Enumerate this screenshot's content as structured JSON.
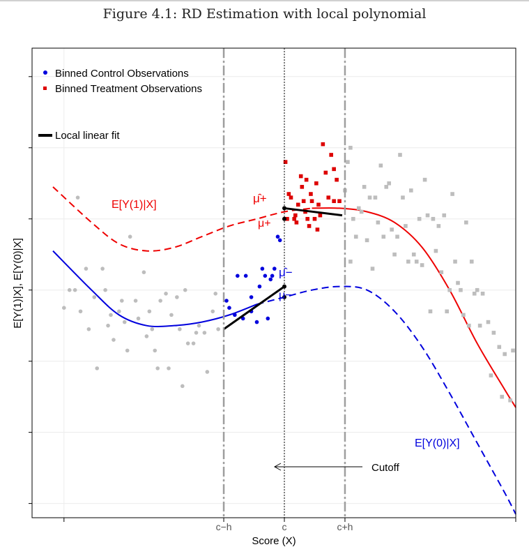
{
  "figure_title": "Figure 4.1: RD Estimation with local polynomial",
  "chart_data": {
    "type": "scatter",
    "title": "Figure 4.1: RD Estimation with local polynomial",
    "xlabel": "Score (X)",
    "ylabel": "E[Y(1)|X], E[Y(0)|X]",
    "xlim": [
      -4.2,
      4.2
    ],
    "ylim": [
      -3.2,
      3.4
    ],
    "x_tick_labels": [
      {
        "x": -4.0,
        "label": ""
      },
      {
        "x": -1.1,
        "label": "c−h"
      },
      {
        "x": 0.0,
        "label": "c"
      },
      {
        "x": 1.1,
        "label": "c+h"
      },
      {
        "x": 4.2,
        "label": ""
      }
    ],
    "grid": true,
    "legend": {
      "position": "top-left",
      "entries": [
        {
          "label": "Binned Control Observations",
          "marker": "circle",
          "color": "#0000dd"
        },
        {
          "label": "Binned Treatment Observations",
          "marker": "square",
          "color": "#dd0000"
        },
        {
          "label": "Local linear fit",
          "marker": "line",
          "color": "#000000"
        }
      ]
    },
    "annotations": {
      "ey1": "E[Y(1)|X]",
      "ey0": "E[Y(0)|X]",
      "cutoff": "Cutoff",
      "mu_plus_hat": "μ̂+",
      "mu_plus": "μ+",
      "mu_minus_hat": "μ̂−",
      "mu_minus": "μ−"
    },
    "colors": {
      "treatment": "#ee0000",
      "control": "#0000dd",
      "grey": "#bdbdbd",
      "fit": "#000000"
    },
    "series": [
      {
        "name": "E[Y(1)|X]",
        "kind": "curve",
        "color": "#ee0000",
        "x": [
          -4.2,
          -3.5,
          -3.0,
          -2.5,
          -2.0,
          -1.5,
          -1.0,
          -0.5,
          0.0,
          0.5,
          1.0,
          1.5,
          2.0,
          2.5,
          3.0,
          3.5,
          4.0,
          4.2
        ],
        "y": [
          1.45,
          0.95,
          0.65,
          0.55,
          0.6,
          0.75,
          0.9,
          1.0,
          1.1,
          1.15,
          1.15,
          1.1,
          0.95,
          0.6,
          0.0,
          -0.75,
          -1.4,
          -1.65
        ],
        "dashed_before": 0.0
      },
      {
        "name": "E[Y(0)|X]",
        "kind": "curve",
        "color": "#0000dd",
        "x": [
          -4.2,
          -3.5,
          -3.0,
          -2.5,
          -2.0,
          -1.5,
          -1.0,
          -0.5,
          0.0,
          0.5,
          1.0,
          1.5,
          2.0,
          2.5,
          3.0,
          3.5,
          4.0,
          4.2
        ],
        "y": [
          0.55,
          0.0,
          -0.35,
          -0.5,
          -0.5,
          -0.45,
          -0.35,
          -0.2,
          -0.1,
          0.0,
          0.05,
          0.0,
          -0.3,
          -0.8,
          -1.45,
          -2.15,
          -2.85,
          -3.15
        ],
        "dashed_after": 0.0
      },
      {
        "name": "Local linear fit (treatment)",
        "kind": "segment",
        "color": "#000000",
        "x": [
          0.0,
          1.05
        ],
        "y": [
          1.15,
          1.05
        ]
      },
      {
        "name": "Local linear fit (control)",
        "kind": "segment",
        "color": "#000000",
        "x": [
          -1.1,
          0.0
        ],
        "y": [
          -0.55,
          0.05
        ]
      },
      {
        "name": "Binned Control Observations",
        "kind": "points",
        "marker": "circle",
        "color": "#0000dd",
        "x": [
          -1.05,
          -1.0,
          -0.85,
          -0.75,
          -0.7,
          -0.6,
          -0.5,
          -0.45,
          -0.4,
          -0.35,
          -0.3,
          -0.25,
          -0.22,
          -0.18,
          -0.12,
          -0.08,
          -0.6,
          -0.9
        ],
        "y": [
          -0.15,
          -0.25,
          0.2,
          -0.4,
          0.2,
          -0.3,
          -0.45,
          0.05,
          0.3,
          0.2,
          -0.4,
          0.15,
          0.2,
          0.3,
          0.75,
          0.7,
          -0.1,
          -0.35
        ]
      },
      {
        "name": "Binned Treatment Observations",
        "kind": "points",
        "marker": "square",
        "color": "#dd0000",
        "x": [
          0.02,
          0.05,
          0.08,
          0.12,
          0.18,
          0.22,
          0.25,
          0.3,
          0.32,
          0.35,
          0.38,
          0.42,
          0.45,
          0.48,
          0.5,
          0.55,
          0.58,
          0.62,
          0.65,
          0.7,
          0.75,
          0.8,
          0.85,
          0.9,
          0.95,
          1.0,
          0.4,
          0.6,
          0.2,
          0.9
        ],
        "y": [
          1.8,
          1.0,
          1.35,
          1.3,
          1.0,
          0.95,
          1.2,
          1.6,
          1.45,
          1.25,
          1.1,
          1.0,
          0.9,
          1.35,
          1.25,
          1.0,
          1.5,
          1.2,
          1.05,
          2.05,
          1.65,
          1.3,
          1.9,
          1.7,
          1.55,
          1.25,
          1.55,
          0.85,
          1.05,
          1.25
        ]
      },
      {
        "name": "Binned grey (control, outside window)",
        "kind": "points",
        "marker": "circle",
        "color": "#bdbdbd",
        "x": [
          -4.0,
          -3.9,
          -3.8,
          -3.7,
          -3.6,
          -3.55,
          -3.45,
          -3.4,
          -3.3,
          -3.25,
          -3.15,
          -3.1,
          -3.0,
          -2.95,
          -2.9,
          -2.85,
          -2.8,
          -2.7,
          -2.65,
          -2.55,
          -2.5,
          -2.45,
          -2.4,
          -2.35,
          -2.3,
          -2.25,
          -2.15,
          -2.1,
          -2.05,
          -1.95,
          -1.9,
          -1.85,
          -1.8,
          -1.75,
          -1.65,
          -1.6,
          -1.55,
          -1.45,
          -1.4,
          -1.3,
          -1.25,
          -1.2,
          -3.75,
          -3.2
        ],
        "y": [
          -0.25,
          0.0,
          0.0,
          -0.3,
          0.3,
          -0.55,
          -0.1,
          -1.1,
          0.3,
          0.0,
          -0.35,
          -0.7,
          -0.3,
          -0.15,
          -0.45,
          -0.85,
          0.75,
          -0.15,
          -0.4,
          0.25,
          -0.65,
          -0.3,
          -0.55,
          -0.85,
          -1.1,
          -0.15,
          -0.05,
          -1.1,
          -0.35,
          -0.1,
          -0.55,
          -1.35,
          0.0,
          -0.75,
          -0.75,
          -0.6,
          -0.5,
          -0.6,
          -1.15,
          -0.3,
          -0.05,
          -0.55,
          1.3,
          -0.5
        ]
      },
      {
        "name": "Binned grey (treatment, outside window)",
        "kind": "points",
        "marker": "square",
        "color": "#bdbdbd",
        "x": [
          1.1,
          1.15,
          1.2,
          1.25,
          1.3,
          1.4,
          1.45,
          1.5,
          1.55,
          1.6,
          1.7,
          1.75,
          1.8,
          1.85,
          1.9,
          1.95,
          2.0,
          2.05,
          2.1,
          2.15,
          2.2,
          2.3,
          2.35,
          2.4,
          2.45,
          2.5,
          2.55,
          2.6,
          2.7,
          2.75,
          2.8,
          2.85,
          2.9,
          2.95,
          3.0,
          3.05,
          3.1,
          3.15,
          3.2,
          3.25,
          3.3,
          3.35,
          3.4,
          3.45,
          3.5,
          3.6,
          3.7,
          3.8,
          3.9,
          4.0,
          4.1,
          4.15,
          1.2,
          1.35,
          1.65,
          2.25,
          2.65,
          3.55,
          3.75,
          3.95
        ],
        "y": [
          1.4,
          1.8,
          0.4,
          1.0,
          0.75,
          1.1,
          1.45,
          0.7,
          1.3,
          0.3,
          0.95,
          1.75,
          0.75,
          1.45,
          1.5,
          0.85,
          0.5,
          0.75,
          1.9,
          1.3,
          0.9,
          1.4,
          0.5,
          0.4,
          1.0,
          0.35,
          1.55,
          1.05,
          1.0,
          0.55,
          0.9,
          0.25,
          1.05,
          -0.3,
          0.0,
          1.35,
          0.4,
          0.1,
          0.0,
          -0.35,
          0.95,
          -0.5,
          0.4,
          -0.05,
          0.0,
          -0.05,
          -0.45,
          -0.6,
          -0.8,
          -0.9,
          -1.55,
          -0.85,
          2.0,
          1.15,
          1.3,
          0.4,
          -0.3,
          -0.5,
          -1.2,
          -1.5
        ]
      }
    ]
  }
}
